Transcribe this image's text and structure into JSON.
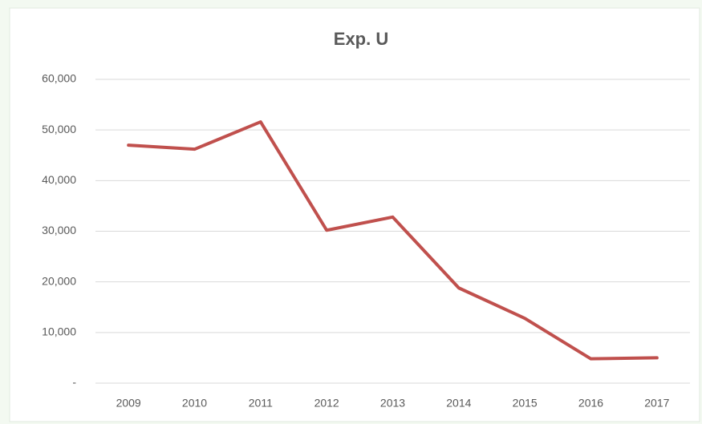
{
  "chart_data": {
    "type": "line",
    "title": "Exp. U",
    "categories": [
      "2009",
      "2010",
      "2011",
      "2012",
      "2013",
      "2014",
      "2015",
      "2016",
      "2017"
    ],
    "series": [
      {
        "name": "Exp. U",
        "color": "#c0504d",
        "values": [
          47000,
          46200,
          51600,
          30200,
          32800,
          18800,
          12800,
          4800,
          5000
        ]
      }
    ],
    "ylim": [
      0,
      60000
    ],
    "yticks": [
      {
        "value": 0,
        "label": "-"
      },
      {
        "value": 10000,
        "label": "10,000"
      },
      {
        "value": 20000,
        "label": "20,000"
      },
      {
        "value": 30000,
        "label": "30,000"
      },
      {
        "value": 40000,
        "label": "40,000"
      },
      {
        "value": 50000,
        "label": "50,000"
      },
      {
        "value": 60000,
        "label": "60,000"
      }
    ],
    "grid": true
  }
}
